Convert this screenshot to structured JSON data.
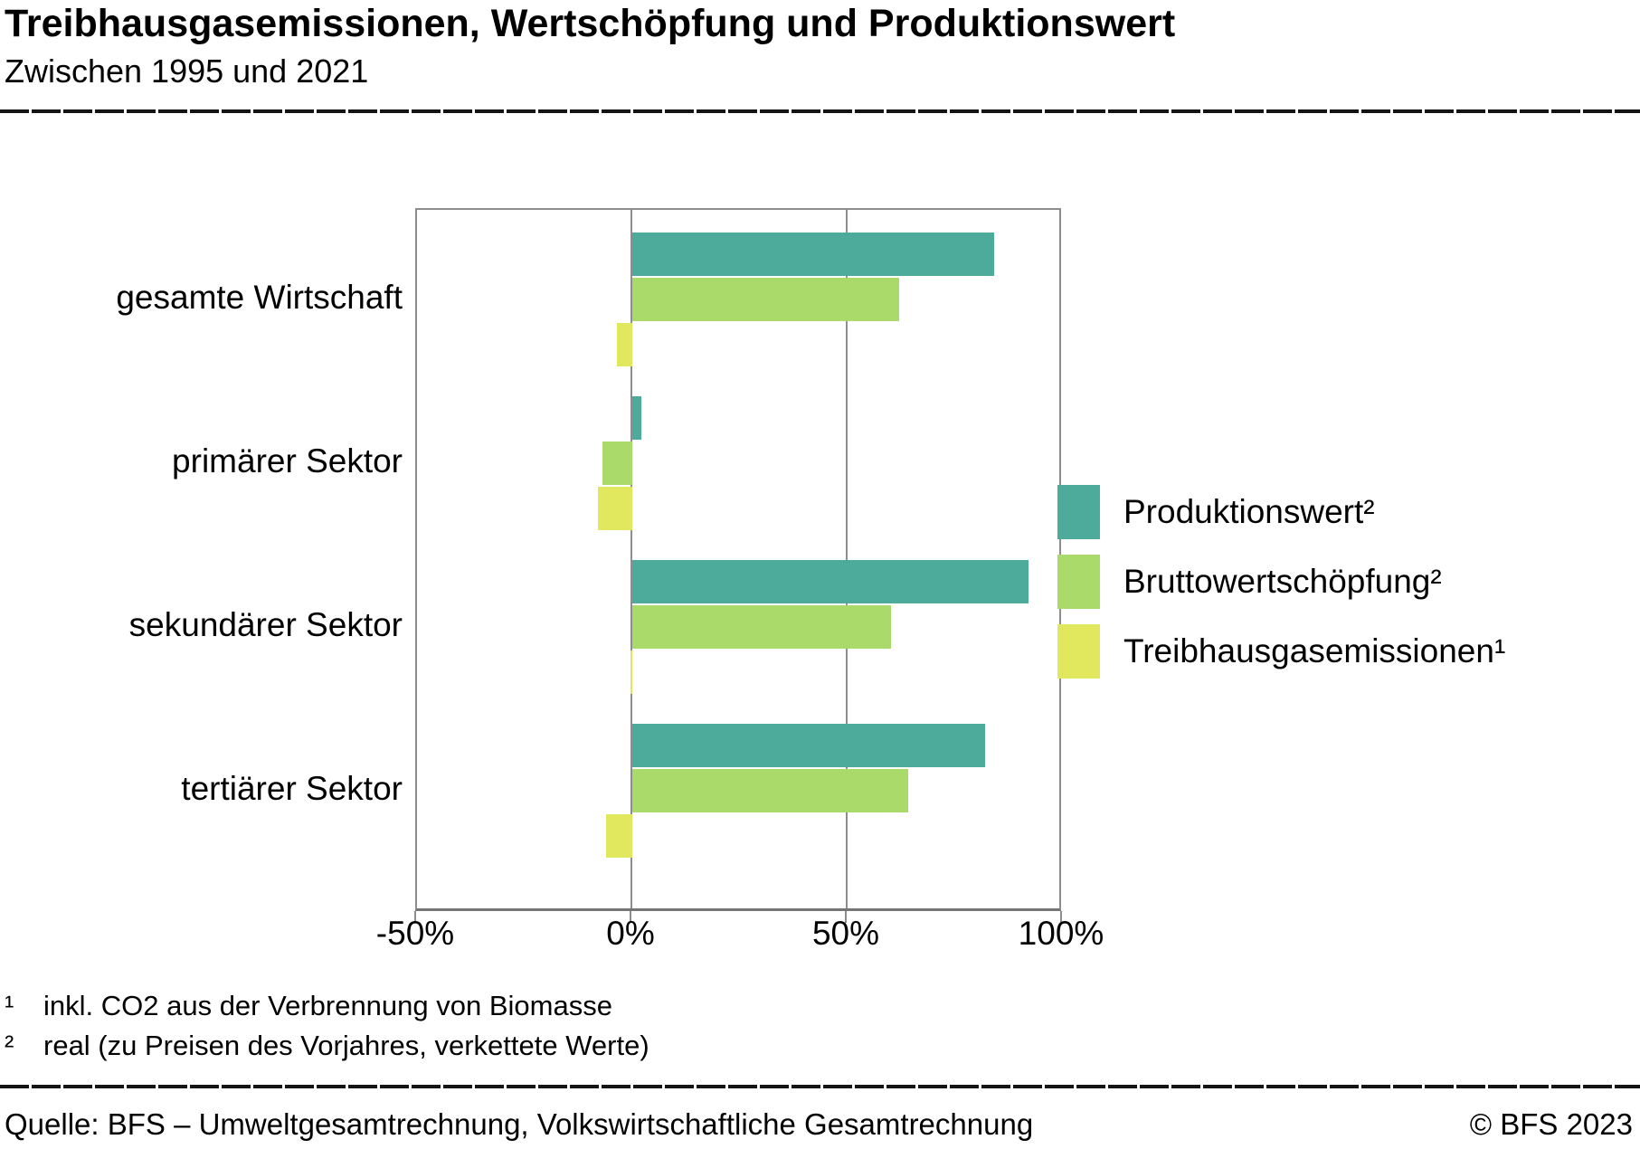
{
  "header": {
    "title": "Treibhausgasemissionen, Wertschöpfung und Produktionswert",
    "subtitle": "Zwischen 1995 und 2021"
  },
  "chart_data": {
    "type": "bar",
    "orientation": "horizontal",
    "title": "Treibhausgasemissionen, Wertschöpfung und Produktionswert",
    "subtitle": "Zwischen 1995 und 2021",
    "categories": [
      "gesamte Wirtschaft",
      "primärer Sektor",
      "sekundärer Sektor",
      "tertiärer Sektor"
    ],
    "series": [
      {
        "name": "Produktionswert²",
        "color": "#4dab9c",
        "values": [
          84,
          2,
          92,
          82
        ]
      },
      {
        "name": "Bruttowertschöpfung²",
        "color": "#aadb6a",
        "values": [
          62,
          -7,
          60,
          64
        ]
      },
      {
        "name": "Treibhausgasemissionen¹",
        "color": "#e2e85e",
        "values": [
          -3.5,
          -8,
          -0.5,
          -6
        ]
      }
    ],
    "x_axis": {
      "unit": "%",
      "min": -50,
      "max": 100,
      "ticks": [
        "-50%",
        "0%",
        "50%",
        "100%"
      ],
      "tick_values": [
        -50,
        0,
        50,
        100
      ],
      "gridline_values": [
        0,
        50
      ]
    },
    "legend_position": "right",
    "grid": "vertical"
  },
  "footnotes": [
    {
      "marker": "¹",
      "text": "inkl. CO2 aus der Verbrennung von Biomasse"
    },
    {
      "marker": "²",
      "text": "real (zu Preisen des Vorjahres, verkettete Werte)"
    }
  ],
  "footer": {
    "source": "Quelle: BFS – Umweltgesamtrechnung, Volkswirtschaftliche Gesamtrechnung",
    "copyright": "© BFS 2023"
  },
  "colors": {
    "axis": "#8d8d8d",
    "text": "#000000",
    "background": "#ffffff"
  }
}
